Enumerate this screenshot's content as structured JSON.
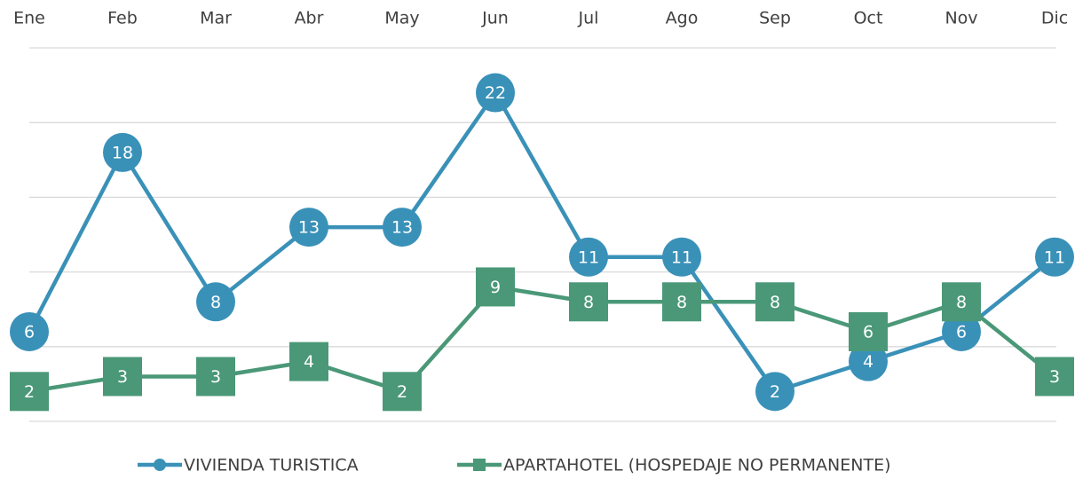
{
  "chart_data": {
    "type": "line",
    "categories": [
      "Ene",
      "Feb",
      "Mar",
      "Abr",
      "May",
      "Jun",
      "Jul",
      "Ago",
      "Sep",
      "Oct",
      "Nov",
      "Dic"
    ],
    "series": [
      {
        "name": "VIVIENDA TURISTICA",
        "color": "#3a91b8",
        "marker": "circle",
        "values": [
          6,
          18,
          8,
          13,
          13,
          22,
          11,
          11,
          2,
          4,
          6,
          11
        ]
      },
      {
        "name": "APARTAHOTEL (HOSPEDAJE NO PERMANENTE)",
        "color": "#4a9878",
        "marker": "square",
        "values": [
          2,
          3,
          3,
          4,
          2,
          9,
          8,
          8,
          8,
          6,
          8,
          3
        ]
      }
    ],
    "ylim": [
      0,
      25
    ],
    "yticks": [
      0,
      5,
      10,
      15,
      20,
      25
    ],
    "grid": true,
    "legend": "bottom"
  }
}
